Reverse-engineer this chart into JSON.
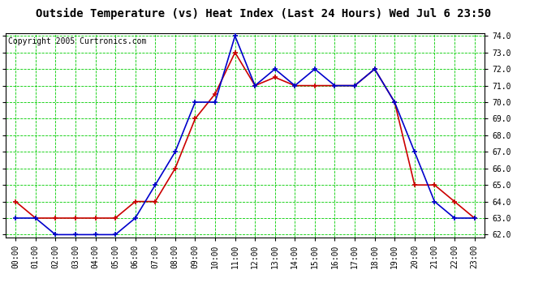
{
  "title": "Outside Temperature (vs) Heat Index (Last 24 Hours) Wed Jul 6 23:50",
  "copyright": "Copyright 2005 Curtronics.com",
  "x_labels": [
    "00:00",
    "01:00",
    "02:00",
    "03:00",
    "04:00",
    "05:00",
    "06:00",
    "07:00",
    "08:00",
    "09:00",
    "10:00",
    "11:00",
    "12:00",
    "13:00",
    "14:00",
    "15:00",
    "16:00",
    "17:00",
    "18:00",
    "19:00",
    "20:00",
    "21:00",
    "22:00",
    "23:00"
  ],
  "blue_data": [
    63.0,
    63.0,
    62.0,
    62.0,
    62.0,
    62.0,
    63.0,
    65.0,
    67.0,
    70.0,
    70.0,
    74.0,
    71.0,
    72.0,
    71.0,
    72.0,
    71.0,
    71.0,
    72.0,
    70.0,
    67.0,
    64.0,
    63.0,
    63.0
  ],
  "red_data": [
    64.0,
    63.0,
    63.0,
    63.0,
    63.0,
    63.0,
    64.0,
    64.0,
    66.0,
    69.0,
    70.5,
    73.0,
    71.0,
    71.5,
    71.0,
    71.0,
    71.0,
    71.0,
    72.0,
    70.0,
    65.0,
    65.0,
    64.0,
    63.0
  ],
  "ylim_min": 62.0,
  "ylim_max": 74.0,
  "ytick_min": 62.0,
  "ytick_max": 74.0,
  "ytick_step": 1.0,
  "blue_color": "#0000cc",
  "red_color": "#cc0000",
  "grid_color": "#00cc00",
  "bg_color": "#ffffff",
  "title_fontsize": 10,
  "copyright_fontsize": 7,
  "tick_fontsize": 7
}
